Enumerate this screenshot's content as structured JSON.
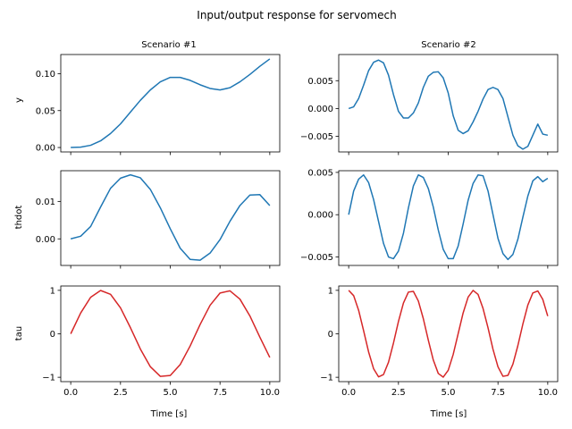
{
  "figure": {
    "title": "Input/output response for servomech",
    "columns": [
      "Scenario #1",
      "Scenario #2"
    ],
    "xlabel": "Time [s]"
  },
  "colors": {
    "output": "#1f77b4",
    "input": "#d62728"
  },
  "chart_data": [
    {
      "type": "line",
      "title": "Scenario #1",
      "xlabel": "",
      "ylabel": "y",
      "xlim": [
        -0.5,
        10.5
      ],
      "ylim": [
        -0.006,
        0.126
      ],
      "xticks": [
        0,
        2.5,
        5,
        7.5,
        10
      ],
      "xticklabels": [],
      "yticks": [
        0,
        0.05,
        0.1
      ],
      "yticklabels": [
        "0.00",
        "0.05",
        "0.10"
      ],
      "series": [
        {
          "color": "#1f77b4",
          "x": [
            0,
            0.5,
            1,
            1.5,
            2,
            2.5,
            3,
            3.5,
            4,
            4.5,
            5,
            5.5,
            6,
            6.5,
            7,
            7.5,
            8,
            8.5,
            9,
            9.5,
            10
          ],
          "y": [
            0,
            0.0005,
            0.003,
            0.009,
            0.019,
            0.032,
            0.048,
            0.064,
            0.078,
            0.089,
            0.095,
            0.095,
            0.091,
            0.085,
            0.08,
            0.078,
            0.081,
            0.089,
            0.099,
            0.11,
            0.12
          ]
        }
      ]
    },
    {
      "type": "line",
      "title": "Scenario #2",
      "xlabel": "",
      "ylabel": "",
      "xlim": [
        -0.5,
        10.5
      ],
      "ylim": [
        -0.0078,
        0.0097
      ],
      "xticks": [
        0,
        2.5,
        5,
        7.5,
        10
      ],
      "xticklabels": [],
      "yticks": [
        -0.005,
        0,
        0.005
      ],
      "yticklabels": [
        "−0.005",
        "0.000",
        "0.005"
      ],
      "series": [
        {
          "color": "#1f77b4",
          "x": [
            0,
            0.25,
            0.5,
            0.75,
            1,
            1.25,
            1.5,
            1.75,
            2,
            2.25,
            2.5,
            2.75,
            3,
            3.25,
            3.5,
            3.75,
            4,
            4.25,
            4.5,
            4.75,
            5,
            5.25,
            5.5,
            5.75,
            6,
            6.25,
            6.5,
            6.75,
            7,
            7.25,
            7.5,
            7.75,
            8,
            8.25,
            8.5,
            8.75,
            9,
            9.25,
            9.5,
            9.75,
            10
          ],
          "y": [
            0,
            0.0003,
            0.0018,
            0.0042,
            0.0068,
            0.0083,
            0.0087,
            0.0082,
            0.006,
            0.0025,
            -0.0005,
            -0.0017,
            -0.0017,
            -0.0008,
            0.001,
            0.0038,
            0.0058,
            0.0065,
            0.0066,
            0.0055,
            0.0028,
            -0.0013,
            -0.0039,
            -0.0045,
            -0.004,
            -0.0024,
            -0.0005,
            0.0017,
            0.0034,
            0.0038,
            0.0034,
            0.0018,
            -0.0015,
            -0.0048,
            -0.0067,
            -0.0073,
            -0.0068,
            -0.0048,
            -0.0028,
            -0.0046,
            -0.0048
          ]
        }
      ]
    },
    {
      "type": "line",
      "title": "",
      "xlabel": "",
      "ylabel": "thdot",
      "xlim": [
        -0.5,
        10.5
      ],
      "ylim": [
        -0.0071,
        0.0182
      ],
      "xticks": [
        0,
        2.5,
        5,
        7.5,
        10
      ],
      "xticklabels": [],
      "yticks": [
        0,
        0.01
      ],
      "yticklabels": [
        "0.00",
        "0.01"
      ],
      "series": [
        {
          "color": "#1f77b4",
          "x": [
            0,
            0.5,
            1,
            1.5,
            2,
            2.5,
            3,
            3.5,
            4,
            4.5,
            5,
            5.5,
            6,
            6.5,
            7,
            7.5,
            8,
            8.5,
            9,
            9.5,
            10
          ],
          "y": [
            0,
            0.0007,
            0.0033,
            0.0085,
            0.0135,
            0.0162,
            0.0171,
            0.0163,
            0.0132,
            0.0083,
            0.0027,
            -0.0025,
            -0.0055,
            -0.0057,
            -0.0038,
            -0.0002,
            0.0047,
            0.0089,
            0.0117,
            0.0118,
            0.0089
          ]
        }
      ]
    },
    {
      "type": "line",
      "title": "",
      "xlabel": "",
      "ylabel": "",
      "xlim": [
        -0.5,
        10.5
      ],
      "ylim": [
        -0.006,
        0.0052
      ],
      "xticks": [
        0,
        2.5,
        5,
        7.5,
        10
      ],
      "xticklabels": [],
      "yticks": [
        -0.005,
        0,
        0.005
      ],
      "yticklabels": [
        "−0.005",
        "0.000",
        "0.005"
      ],
      "series": [
        {
          "color": "#1f77b4",
          "x": [
            0,
            0.25,
            0.5,
            0.75,
            1,
            1.25,
            1.5,
            1.75,
            2,
            2.25,
            2.5,
            2.75,
            3,
            3.25,
            3.5,
            3.75,
            4,
            4.25,
            4.5,
            4.75,
            5,
            5.25,
            5.5,
            5.75,
            6,
            6.25,
            6.5,
            6.75,
            7,
            7.25,
            7.5,
            7.75,
            8,
            8.25,
            8.5,
            8.75,
            9,
            9.25,
            9.5,
            9.75,
            10
          ],
          "y": [
            0,
            0.0028,
            0.0042,
            0.0047,
            0.0038,
            0.0018,
            -0.0008,
            -0.0034,
            -0.005,
            -0.0052,
            -0.0043,
            -0.0022,
            0.0008,
            0.0034,
            0.0047,
            0.0044,
            0.0031,
            0.0009,
            -0.0018,
            -0.0041,
            -0.0052,
            -0.0052,
            -0.0037,
            -0.0011,
            0.0017,
            0.0037,
            0.0047,
            0.0046,
            0.0028,
            0,
            -0.0028,
            -0.0046,
            -0.0053,
            -0.0047,
            -0.0029,
            -0.0003,
            0.0022,
            0.004,
            0.0045,
            0.0039,
            0.0043
          ]
        }
      ]
    },
    {
      "type": "line",
      "title": "",
      "xlabel": "Time [s]",
      "ylabel": "tau",
      "xlim": [
        -0.5,
        10.5
      ],
      "ylim": [
        -1.1,
        1.1
      ],
      "xticks": [
        0,
        2.5,
        5,
        7.5,
        10
      ],
      "xticklabels": [
        "0.0",
        "2.5",
        "5.0",
        "7.5",
        "10.0"
      ],
      "yticks": [
        -1,
        0,
        1
      ],
      "yticklabels": [
        "−1",
        "0",
        "1"
      ],
      "series": [
        {
          "color": "#d62728",
          "x": [
            0,
            0.5,
            1,
            1.5,
            2,
            2.5,
            3,
            3.5,
            4,
            4.5,
            5,
            5.5,
            6,
            6.5,
            7,
            7.5,
            8,
            8.5,
            9,
            9.5,
            10
          ],
          "y": [
            0,
            0.479,
            0.841,
            0.997,
            0.909,
            0.598,
            0.141,
            -0.351,
            -0.757,
            -0.978,
            -0.959,
            -0.706,
            -0.279,
            0.215,
            0.657,
            0.938,
            0.989,
            0.798,
            0.412,
            -0.075,
            -0.544
          ]
        }
      ]
    },
    {
      "type": "line",
      "title": "",
      "xlabel": "Time [s]",
      "ylabel": "",
      "xlim": [
        -0.5,
        10.5
      ],
      "ylim": [
        -1.1,
        1.1
      ],
      "xticks": [
        0,
        2.5,
        5,
        7.5,
        10
      ],
      "xticklabels": [
        "0.0",
        "2.5",
        "5.0",
        "7.5",
        "10.0"
      ],
      "yticks": [
        -1,
        0,
        1
      ],
      "yticklabels": [
        "−1",
        "0",
        "1"
      ],
      "series": [
        {
          "color": "#d62728",
          "x": [
            0,
            0.25,
            0.5,
            0.75,
            1,
            1.25,
            1.5,
            1.75,
            2,
            2.25,
            2.5,
            2.75,
            3,
            3.25,
            3.5,
            3.75,
            4,
            4.25,
            4.5,
            4.75,
            5,
            5.25,
            5.5,
            5.75,
            6,
            6.25,
            6.5,
            6.75,
            7,
            7.25,
            7.5,
            7.75,
            8,
            8.25,
            8.5,
            8.75,
            9,
            9.25,
            9.5,
            9.75,
            10
          ],
          "y": [
            1,
            0.878,
            0.54,
            0.071,
            -0.416,
            -0.801,
            -0.99,
            -0.936,
            -0.654,
            -0.211,
            0.284,
            0.709,
            0.96,
            0.976,
            0.754,
            0.347,
            -0.146,
            -0.602,
            -0.911,
            -0.997,
            -0.839,
            -0.474,
            0.004,
            0.481,
            0.844,
            0.999,
            0.906,
            0.583,
            0.137,
            -0.355,
            -0.759,
            -0.978,
            -0.957,
            -0.697,
            -0.27,
            0.224,
            0.662,
            0.939,
            0.986,
            0.792,
            0.408
          ]
        }
      ]
    }
  ]
}
